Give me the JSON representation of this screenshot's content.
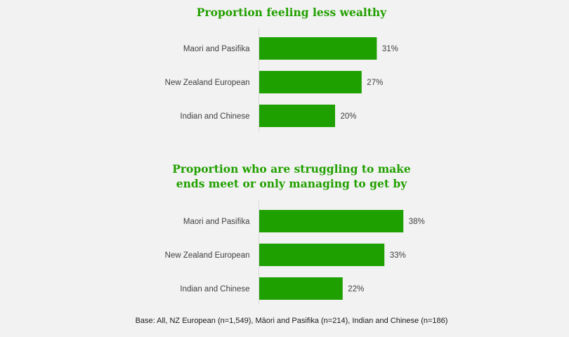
{
  "chart_data": [
    {
      "type": "bar",
      "orientation": "horizontal",
      "title": "Proportion feeling less wealthy",
      "categories": [
        "Maori and Pasifika",
        "New Zealand European",
        "Indian and Chinese"
      ],
      "values": [
        31,
        27,
        20
      ],
      "value_labels": [
        "31%",
        "27%",
        "20%"
      ],
      "unit": "%",
      "bar_color": "#1ea000"
    },
    {
      "type": "bar",
      "orientation": "horizontal",
      "title": "Proportion who are struggling to make ends meet or only managing to get by",
      "title_lines": [
        "Proportion who are struggling to make",
        "ends meet or only managing to get by"
      ],
      "categories": [
        "Maori and Pasifika",
        "New Zealand European",
        "Indian and Chinese"
      ],
      "values": [
        38,
        33,
        22
      ],
      "value_labels": [
        "38%",
        "33%",
        "22%"
      ],
      "unit": "%",
      "bar_color": "#1ea000"
    }
  ],
  "footnote": "Base: All, NZ European (n=1,549), Māori and Pasifika (n=214), Indian and Chinese (n=186)",
  "colors": {
    "title": "#22a000",
    "bar": "#1ea000",
    "axis": "#d9d9d9",
    "background": "#f2f2f2"
  }
}
